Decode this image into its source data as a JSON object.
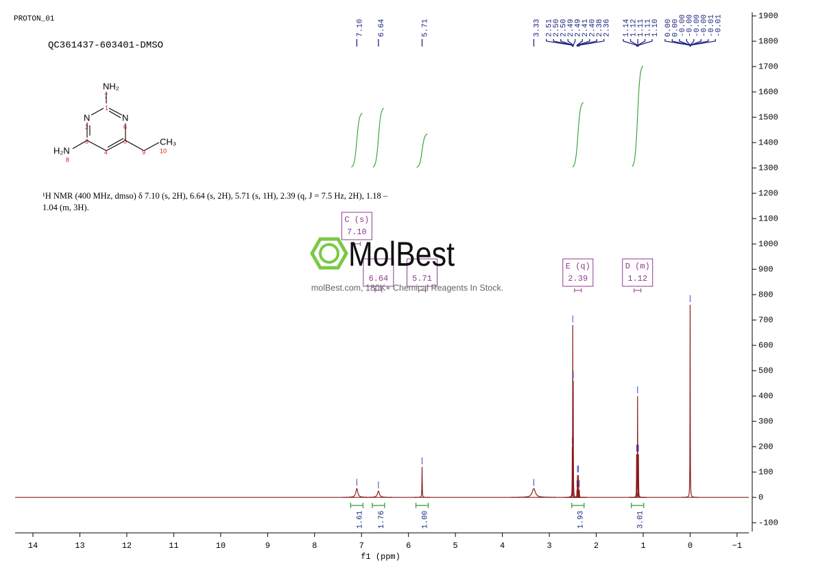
{
  "header": {
    "experiment": "PROTON_01",
    "sample": "QC361437-603401-DMSO"
  },
  "structure": {
    "atoms": [
      {
        "label": "NH₂",
        "number": "7"
      },
      {
        "label": "N",
        "number": "2"
      },
      {
        "label": "N",
        "number": "6"
      },
      {
        "label": "H₂N",
        "number": "8"
      },
      {
        "label": "CH₃",
        "number": "10"
      }
    ],
    "carbons": [
      "1",
      "3",
      "4",
      "5",
      "9"
    ]
  },
  "description": [
    "¹H NMR (400 MHz, dmso) δ 7.10 (s, 2H), 6.64 (s, 2H), 5.71 (s, 1H), 2.39 (q, J = 7.5 Hz, 2H), 1.18 –",
    "1.04 (m, 3H)."
  ],
  "watermark": {
    "brand": "MolBest",
    "tagline": "molBest.com, 180K+ Chemical Reagents In Stock."
  },
  "chart_data": {
    "type": "nmr",
    "x_label": "f1  (ppm)",
    "xlim": [
      14.38,
      -1.25
    ],
    "xticks": [
      14,
      13,
      12,
      11,
      10,
      9,
      8,
      7,
      6,
      5,
      4,
      3,
      2,
      1,
      0,
      {
        "value": -1,
        "label": "−1"
      }
    ],
    "ylim": [
      -140,
      1914
    ],
    "yticks": [
      -100,
      0,
      100,
      200,
      300,
      400,
      500,
      600,
      700,
      800,
      900,
      1000,
      1100,
      1200,
      1300,
      1400,
      1500,
      1600,
      1700,
      1800,
      1900
    ],
    "color": "#8b1a1a",
    "peaks": {
      "x": [
        7.1,
        6.64,
        5.71,
        3.33,
        2.51,
        2.5,
        2.49,
        2.41,
        2.4,
        2.38,
        2.36,
        1.14,
        1.12,
        1.1,
        0
      ],
      "values": [
        35,
        25,
        120,
        35,
        200,
        680,
        460,
        30,
        88,
        88,
        30,
        170,
        400,
        170,
        760
      ],
      "widths": [
        0.025,
        0.025,
        0.004,
        0.04,
        0.003,
        0.003,
        0.003,
        0.003,
        0.003,
        0.003,
        0.003,
        0.003,
        0.003,
        0.003,
        0.003
      ]
    },
    "peak_labels": {
      "values": [
        7.1,
        6.64,
        5.71,
        3.33,
        2.51,
        2.5,
        2.5,
        2.49,
        2.49,
        2.41,
        2.4,
        2.38,
        2.36,
        1.14,
        1.12,
        1.11,
        1.11,
        1.1,
        0,
        0,
        0,
        0,
        0,
        0,
        -0.01,
        -0.01
      ],
      "value_labels": [
        "7.10",
        "6.64",
        "5.71",
        "3.33",
        "2.51",
        "2.50",
        "2.50",
        "2.49",
        "2.49",
        "2.41",
        "2.40",
        "2.38",
        "2.36",
        "1.14",
        "1.12",
        "1.11",
        "1.11",
        "1.10",
        "0.00",
        "0.00",
        "-0.00",
        "-0.00",
        "-0.00",
        "-0.00",
        "-0.01",
        "-0.01"
      ]
    },
    "multiplets": {
      "names": [
        "C (s)",
        null,
        null,
        "E (q)",
        "D (m)"
      ],
      "values": [
        7.1,
        6.64,
        5.71,
        2.39,
        1.12
      ],
      "value_labels": [
        "7.10",
        "6.64",
        "5.71",
        "2.39",
        "1.12"
      ]
    },
    "integrals": {
      "x": [
        7.1,
        6.64,
        5.71,
        2.39,
        1.12
      ],
      "values": [
        1.61,
        1.76,
        1,
        1.93,
        3.01
      ],
      "value_labels": [
        "1.61",
        "1.76",
        "1.00",
        "1.93",
        "3.01"
      ]
    }
  }
}
